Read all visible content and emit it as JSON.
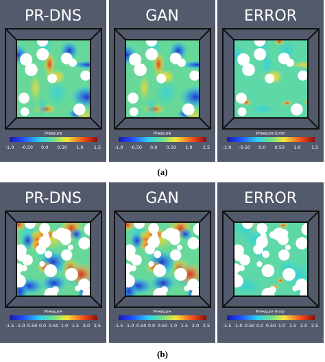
{
  "figures": [
    {
      "label": "(a)",
      "panels": [
        {
          "title": "PR-DNS",
          "colorbar_label": "Pressure",
          "ticks": [
            "-1.0",
            "-0.50",
            "0.0",
            "0.50",
            "1.0",
            "1.5"
          ]
        },
        {
          "title": "GAN",
          "colorbar_label": "Pressure",
          "ticks": [
            "-1.0",
            "-0.50",
            "0.0",
            "0.50",
            "1.0",
            "1.5"
          ]
        },
        {
          "title": "ERROR",
          "colorbar_label": "Pressure Error",
          "ticks": [
            "-1.0",
            "-0.50",
            "0.0",
            "0.50",
            "1.0",
            "1.5"
          ]
        }
      ]
    },
    {
      "label": "(b)",
      "panels": [
        {
          "title": "PR-DNS",
          "colorbar_label": "Pressure",
          "ticks": [
            "-1.5",
            "-1.0",
            "-0.50",
            "0.0",
            "0.50",
            "1.0",
            "1.5",
            "2.0",
            "2.5"
          ]
        },
        {
          "title": "GAN",
          "colorbar_label": "Pressure",
          "ticks": [
            "-1.5",
            "-1.0",
            "-0.50",
            "0.0",
            "0.50",
            "1.0",
            "1.5",
            "2.0",
            "2.5"
          ]
        },
        {
          "title": "ERROR",
          "colorbar_label": "Pressure Error",
          "ticks": [
            "-1.5",
            "-1.0",
            "-0.50",
            "0.0",
            "0.50",
            "1.0",
            "1.5",
            "2.0",
            "2.5"
          ]
        }
      ]
    }
  ]
}
